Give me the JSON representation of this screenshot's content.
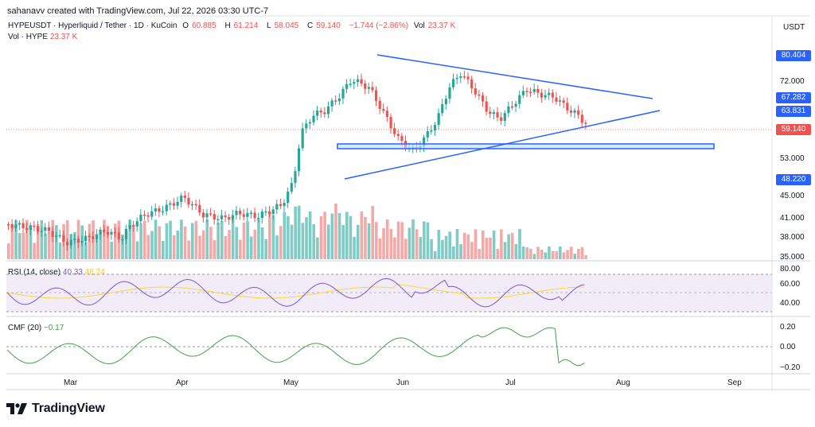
{
  "header": {
    "attribution": "sahanavv created with TradingView.com, Jul 22, 2026 03:30 UTC-7"
  },
  "legend": {
    "symbol": "HYPEUSDT · Hyperliquid / Tether · 1D · KuCoin",
    "o_label": "O",
    "o": "60.885",
    "h_label": "H",
    "h": "61.214",
    "l_label": "L",
    "l": "58.045",
    "c_label": "C",
    "c": "59.140",
    "change": "−1.744 (−2.86%)",
    "vol_label": "Vol",
    "vol": "23.37 K",
    "vol2_label": "Vol · HYPE",
    "vol2": "23.37 K"
  },
  "rsi": {
    "label": "RSI (14, close)",
    "value": "40.33",
    "ma": "46.24"
  },
  "cmf": {
    "label": "CMF (20)",
    "value": "−0.17"
  },
  "price_axis": {
    "currency": "USDT",
    "labels": [
      "72.000",
      "53.000",
      "45.000",
      "41.000",
      "38.000",
      "35.000"
    ],
    "tags": [
      {
        "value": "80.404",
        "color": "#2962ff"
      },
      {
        "value": "67.282",
        "color": "#2962ff"
      },
      {
        "value": "63.831",
        "color": "#2962ff"
      },
      {
        "value": "59.140",
        "color": "#ef5350"
      },
      {
        "value": "48.220",
        "color": "#2962ff"
      }
    ]
  },
  "rsi_axis": [
    "80.00",
    "60.00",
    "40.00"
  ],
  "cmf_axis": [
    "0.20",
    "0.00",
    "−0.20"
  ],
  "time_axis": [
    "Mar",
    "Apr",
    "May",
    "Jun",
    "Jul",
    "Aug",
    "Sep"
  ],
  "footer": {
    "brand": "TradingView"
  },
  "colors": {
    "up": "#26a69a",
    "down": "#ef5350",
    "trendline": "#2962ff",
    "rsi_line": "#7e57c2",
    "rsi_ma": "#fdd835",
    "cmf_line": "#43a047"
  }
}
